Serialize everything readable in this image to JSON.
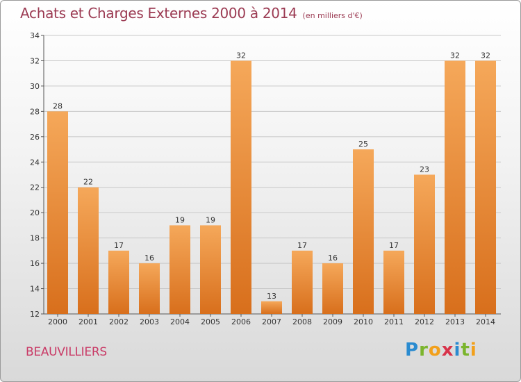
{
  "title": "Achats et Charges Externes 2000 à 2014",
  "subtitle": "(en milliers d'€)",
  "town": "BEAUVILLIERS",
  "logo": {
    "p": "P",
    "r": "r",
    "o": "o",
    "x": "x",
    "i1": "i",
    "t": "t",
    "i2": "i"
  },
  "colors": {
    "bar_top": "#f5a85a",
    "bar_bottom": "#d86f1c",
    "title": "#9b3a52",
    "town": "#c93a66"
  },
  "chart_data": {
    "type": "bar",
    "categories": [
      "2000",
      "2001",
      "2002",
      "2003",
      "2004",
      "2005",
      "2006",
      "2007",
      "2008",
      "2009",
      "2010",
      "2011",
      "2012",
      "2013",
      "2014"
    ],
    "values": [
      28,
      22,
      17,
      16,
      19,
      19,
      32,
      13,
      17,
      16,
      25,
      17,
      23,
      32,
      32
    ],
    "ylim": [
      12,
      34
    ],
    "yticks": [
      12,
      14,
      16,
      18,
      20,
      22,
      24,
      26,
      28,
      30,
      32,
      34
    ],
    "grid": true
  }
}
